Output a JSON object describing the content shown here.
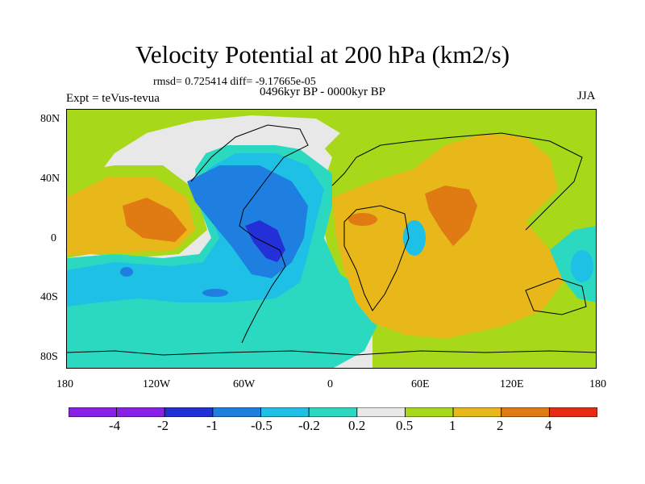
{
  "title": "Velocity Potential at 200 hPa (km2/s)",
  "stats_line": "rmsd= 0.725414 diff= -9.17665e-05",
  "period": "0496kyr BP - 0000kyr BP",
  "experiment": "Expt = teVus-tevua",
  "season": "JJA",
  "lat_labels": [
    "80N",
    "40N",
    "0",
    "40S",
    "80S"
  ],
  "lon_labels": [
    "180",
    "120W",
    "60W",
    "0",
    "60E",
    "120E",
    "180"
  ],
  "colorbar": {
    "labels": [
      "-4",
      "-2",
      "-1",
      "-0.5",
      "-0.2",
      "0.2",
      "0.5",
      "1",
      "2",
      "4"
    ],
    "colors": [
      "#8a1fe6",
      "#2330d8",
      "#1e7fe0",
      "#1ec0e6",
      "#2ad9c0",
      "#e8e8e8",
      "#a8d81a",
      "#e8b81a",
      "#e07a12",
      "#e82a12"
    ]
  }
}
